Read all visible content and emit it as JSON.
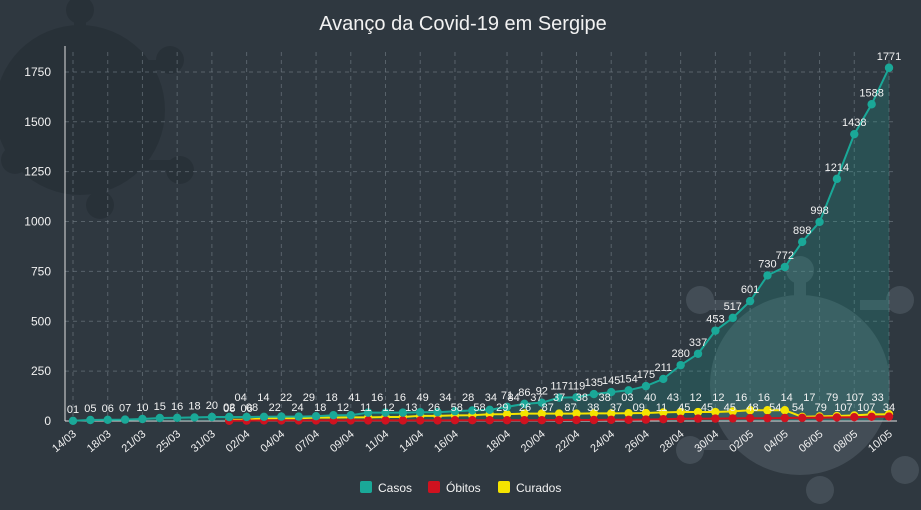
{
  "chart_data": {
    "type": "line",
    "title": "Avanço da Covid-19 em Sergipe",
    "xlabel": "",
    "ylabel": "",
    "ylim": [
      0,
      1850
    ],
    "y_ticks": [
      0,
      250,
      500,
      750,
      1000,
      1250,
      1500,
      1750
    ],
    "x_tick_labels": [
      "14/03",
      "18/03",
      "21/03",
      "25/03",
      "31/03",
      "02/04",
      "04/04",
      "07/04",
      "09/04",
      "11/04",
      "14/04",
      "16/04",
      "18/04",
      "20/04",
      "22/04",
      "24/04",
      "26/04",
      "28/04",
      "30/04",
      "02/05",
      "04/05",
      "06/05",
      "08/05",
      "10/05"
    ],
    "grid": true,
    "legend_position": "bottom",
    "colors": {
      "background": "#2f3840",
      "casos": "#1aa898",
      "obitos": "#d0121f",
      "curados": "#f5e400"
    },
    "series": [
      {
        "name": "Casos",
        "values": [
          1,
          5,
          6,
          7,
          10,
          15,
          16,
          18,
          20,
          20,
          20,
          21,
          22,
          22,
          24,
          29,
          29,
          42,
          42,
          42,
          44,
          44,
          49,
          53,
          56,
          71,
          86,
          92,
          117,
          119,
          135,
          145,
          154,
          175,
          211,
          280,
          337,
          453,
          517,
          601,
          730,
          772,
          898,
          998,
          1214,
          1438,
          1588,
          1771
        ],
        "labels": [
          "01",
          "05",
          "06",
          "07",
          "10",
          "15",
          "16",
          "18",
          "20",
          "",
          "",
          "",
          "",
          "",
          "",
          "",
          "",
          "",
          "",
          "",
          "",
          "",
          "",
          "",
          "",
          "71",
          "86",
          "92",
          "117",
          "119",
          "135",
          "145",
          "154",
          "175",
          "211",
          "280",
          "337",
          "453",
          "517",
          "601",
          "730",
          "772",
          "898",
          "998",
          "1214",
          "1438",
          "1588",
          "1771"
        ]
      },
      {
        "name": "Óbitos",
        "values": [
          null,
          null,
          null,
          null,
          null,
          null,
          null,
          null,
          null,
          1,
          2,
          3,
          3,
          3,
          3,
          3,
          3,
          3,
          3,
          3,
          3,
          3,
          4,
          4,
          4,
          4,
          4,
          4,
          5,
          5,
          5,
          6,
          6,
          7,
          9,
          11,
          12,
          12,
          13,
          14,
          14,
          15,
          16,
          17,
          18,
          19,
          21,
          22
        ],
        "labels": [
          "",
          "",
          "",
          "",
          "",
          "",
          "",
          "",
          "",
          "",
          "",
          "",
          "",
          "",
          "",
          "",
          "",
          "",
          "",
          "",
          "",
          "",
          "",
          "",
          "",
          "",
          "",
          "",
          "",
          "",
          "",
          "",
          "",
          "",
          "",
          "",
          "",
          "",
          "",
          "",
          "",
          "",
          "",
          "",
          "",
          "",
          "",
          ""
        ]
      },
      {
        "name": "Curados",
        "values": [
          null,
          null,
          null,
          null,
          null,
          null,
          null,
          null,
          null,
          6,
          6,
          14,
          14,
          14,
          17,
          17,
          18,
          18,
          20,
          20,
          26,
          26,
          28,
          29,
          34,
          34,
          37,
          37,
          37,
          37,
          38,
          38,
          39,
          40,
          43,
          45,
          45,
          45,
          48,
          54,
          54,
          54,
          21,
          23,
          25,
          28,
          33,
          34
        ],
        "labels": [
          "",
          "",
          "",
          "",
          "",
          "",
          "",
          "",
          "",
          "06",
          "06",
          "",
          "",
          "",
          "",
          "",
          "",
          "",
          "",
          "",
          "",
          "",
          "",
          "",
          "",
          "",
          "",
          "",
          "",
          "",
          "",
          "",
          "",
          "",
          "",
          "",
          "",
          "",
          "",
          "",
          "",
          "",
          "",
          "",
          "",
          "",
          "",
          ""
        ]
      }
    ],
    "extra_labels": [
      "02",
      "04",
      "08",
      "14",
      "22",
      "22",
      "24",
      "29",
      "18",
      "18",
      "12",
      "41",
      "11",
      "16",
      "12",
      "16",
      "13",
      "49",
      "26",
      "34",
      "58",
      "28",
      "58",
      "34",
      "29",
      "84",
      "26",
      "37",
      "87",
      "37",
      "87",
      "38",
      "38",
      "38",
      "37",
      "03",
      "09",
      "40",
      "11",
      "43",
      "45",
      "12",
      "45",
      "12",
      "45",
      "16",
      "48",
      "16",
      "54",
      "14",
      "54",
      "17",
      "79",
      "79",
      "107",
      "107",
      "107",
      "33",
      "34"
    ]
  },
  "legend": [
    {
      "label": "Casos",
      "color": "#1aa898"
    },
    {
      "label": "Óbitos",
      "color": "#d0121f"
    },
    {
      "label": "Curados",
      "color": "#f5e400"
    }
  ]
}
